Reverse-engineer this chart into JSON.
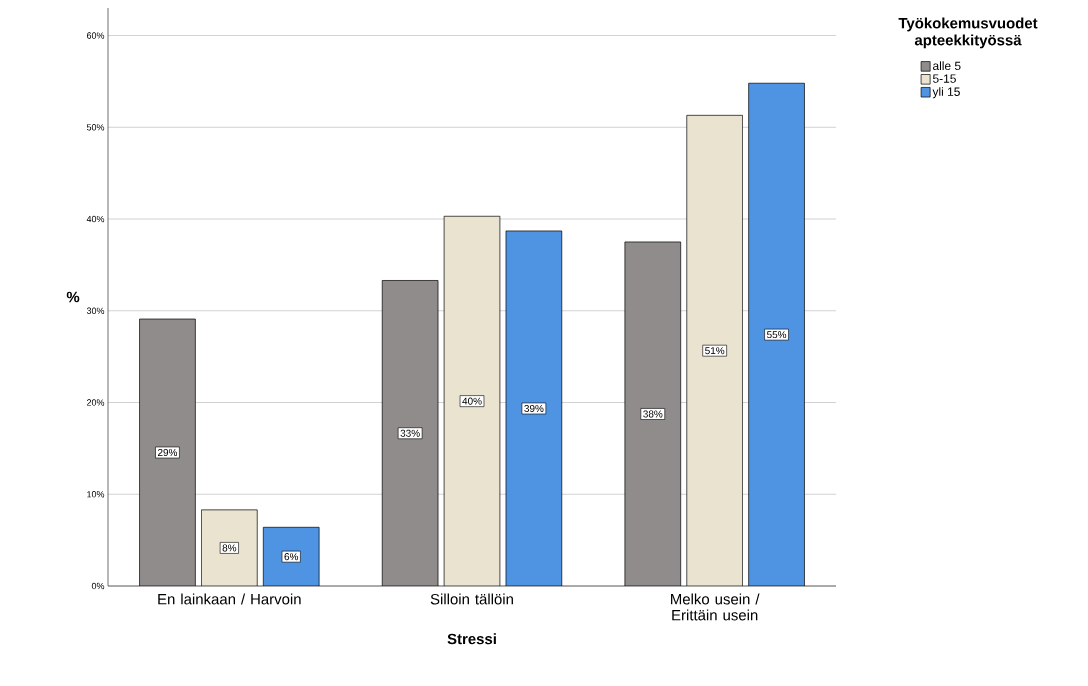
{
  "chart_data": {
    "type": "bar",
    "xlabel": "Stressi",
    "ylabel": "%",
    "legend_title": "Työkokemusvuodet apteekkityössä",
    "categories": [
      "En lainkaan / Harvoin",
      "Silloin tällöin",
      "Melko usein / Erittäin usein"
    ],
    "series": [
      {
        "name": "alle 5",
        "color": "#8f8c8b",
        "values": [
          29.1,
          33.3,
          37.5
        ],
        "value_labels": [
          "29%",
          "33%",
          "38%"
        ]
      },
      {
        "name": "5-15",
        "color": "#e9e3d0",
        "values": [
          8.3,
          40.3,
          51.3
        ],
        "value_labels": [
          "8%",
          "40%",
          "51%"
        ]
      },
      {
        "name": "yli 15",
        "color": "#4f94e3",
        "values": [
          6.4,
          38.7,
          54.8
        ],
        "value_labels": [
          "6%",
          "39%",
          "55%"
        ]
      }
    ],
    "ylim": [
      0,
      63
    ],
    "yticks": [
      {
        "value": 0,
        "label": "0%"
      },
      {
        "value": 10,
        "label": "10%"
      },
      {
        "value": 20,
        "label": "20%"
      },
      {
        "value": 30,
        "label": "30%"
      },
      {
        "value": 40,
        "label": "40%"
      },
      {
        "value": 50,
        "label": "50%"
      },
      {
        "value": 60,
        "label": "60%"
      }
    ],
    "grid": "y",
    "legend": "top right"
  }
}
